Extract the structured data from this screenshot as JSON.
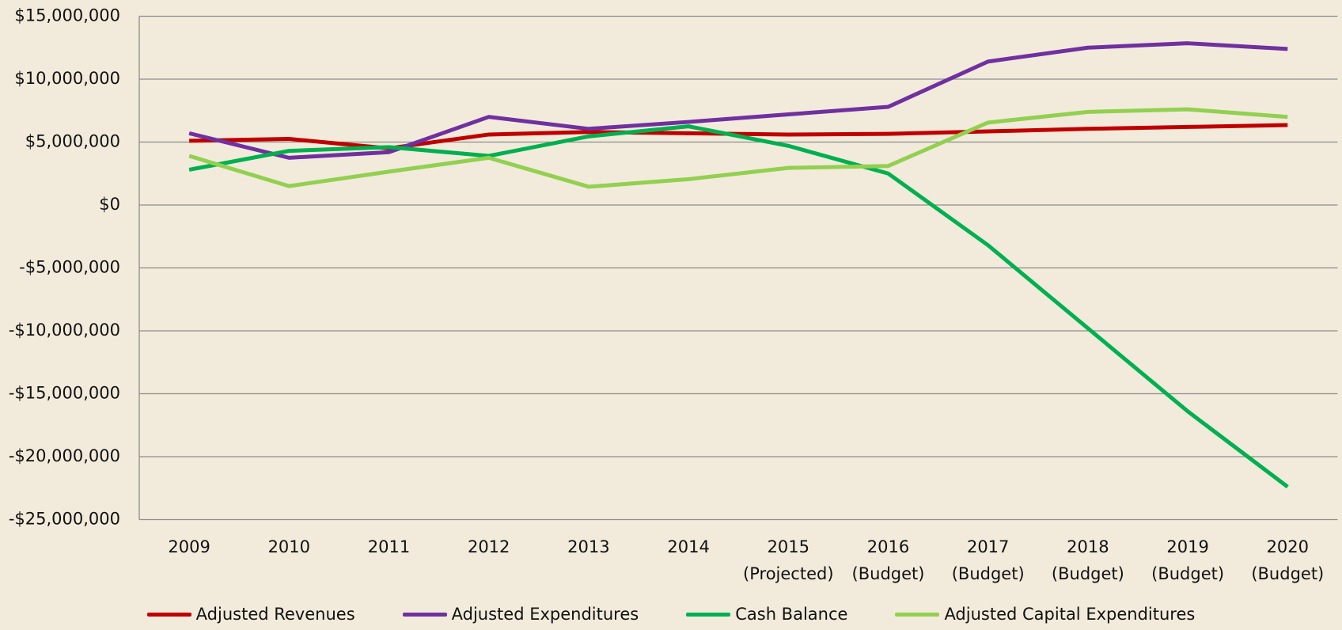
{
  "chart_data": {
    "type": "line",
    "categories": [
      "2009",
      "2010",
      "2011",
      "2012",
      "2013",
      "2014",
      "2015\n(Projected)",
      "2016\n(Budget)",
      "2017\n(Budget)",
      "2018\n(Budget)",
      "2019\n(Budget)",
      "2020\n(Budget)"
    ],
    "series": [
      {
        "name": "Adjusted Revenues",
        "color": "#c00000",
        "values": [
          5100000,
          5250000,
          4500000,
          5600000,
          5800000,
          5700000,
          5600000,
          5650000,
          5850000,
          6050000,
          6200000,
          6350000
        ]
      },
      {
        "name": "Adjusted Expenditures",
        "color": "#7030a0",
        "values": [
          5700000,
          3750000,
          4200000,
          7000000,
          6050000,
          6600000,
          7200000,
          7800000,
          11400000,
          12500000,
          12850000,
          12400000
        ]
      },
      {
        "name": "Cash Balance",
        "color": "#00b050",
        "values": [
          2800000,
          4300000,
          4600000,
          3900000,
          5450000,
          6250000,
          4700000,
          2500000,
          -3200000,
          -9800000,
          -16400000,
          -22400000
        ]
      },
      {
        "name": "Adjusted Capital Expenditures",
        "color": "#92d050",
        "values": [
          3900000,
          1500000,
          2650000,
          3750000,
          1450000,
          2050000,
          2950000,
          3100000,
          6550000,
          7400000,
          7600000,
          7000000
        ]
      }
    ],
    "ylim": [
      -25000000,
      15000000
    ],
    "yticks": [
      {
        "value": -25000000,
        "label": "-$25,000,000"
      },
      {
        "value": -20000000,
        "label": "-$20,000,000"
      },
      {
        "value": -15000000,
        "label": "-$15,000,000"
      },
      {
        "value": -10000000,
        "label": "-$10,000,000"
      },
      {
        "value": -5000000,
        "label": "-$5,000,000"
      },
      {
        "value": 0,
        "label": "$0"
      },
      {
        "value": 5000000,
        "label": "$5,000,000"
      },
      {
        "value": 10000000,
        "label": "$10,000,000"
      },
      {
        "value": 15000000,
        "label": "$15,000,000"
      }
    ],
    "grid": true,
    "legend": "bottom"
  }
}
